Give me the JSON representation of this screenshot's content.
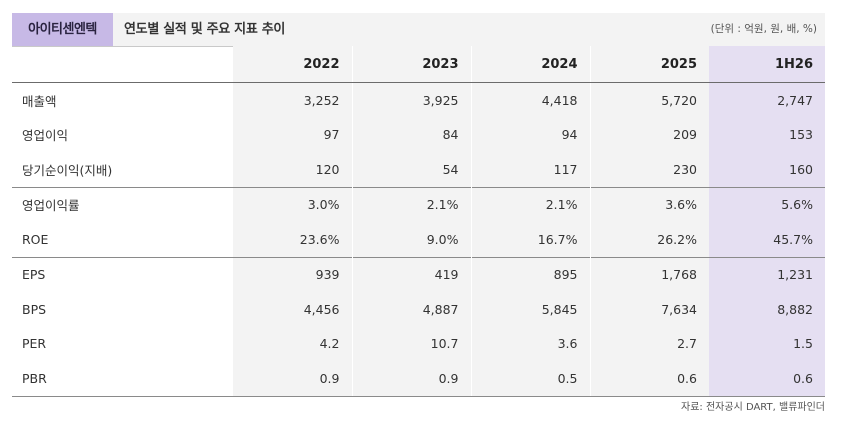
{
  "header": {
    "company": "아이티센엔텍",
    "title": "연도별 실적 및 주요 지표 추이",
    "unit": "(단위 : 억원, 원, 배, %)"
  },
  "table": {
    "columns": [
      "2022",
      "2023",
      "2024",
      "2025",
      "1H26"
    ],
    "rows": [
      {
        "label": "매출액",
        "values": [
          "3,252",
          "3,925",
          "4,418",
          "5,720",
          "2,747"
        ]
      },
      {
        "label": "영업이익",
        "values": [
          "97",
          "84",
          "94",
          "209",
          "153"
        ]
      },
      {
        "label": "당기순이익(지배)",
        "values": [
          "120",
          "54",
          "117",
          "230",
          "160"
        ]
      },
      {
        "label": "영업이익률",
        "values": [
          "3.0%",
          "2.1%",
          "2.1%",
          "3.6%",
          "5.6%"
        ]
      },
      {
        "label": "ROE",
        "values": [
          "23.6%",
          "9.0%",
          "16.7%",
          "26.2%",
          "45.7%"
        ]
      },
      {
        "label": "EPS",
        "values": [
          "939",
          "419",
          "895",
          "1,768",
          "1,231"
        ]
      },
      {
        "label": "BPS",
        "values": [
          "4,456",
          "4,887",
          "5,845",
          "7,634",
          "8,882"
        ]
      },
      {
        "label": "PER",
        "values": [
          "4.2",
          "10.7",
          "3.6",
          "2.7",
          "1.5"
        ]
      },
      {
        "label": "PBR",
        "values": [
          "0.9",
          "0.9",
          "0.5",
          "0.6",
          "0.6"
        ]
      }
    ]
  },
  "source": "자료: 전자공시 DART, 밸류파인더",
  "colors": {
    "badge": "#c7b9e6",
    "header_bg": "#f3f3f3",
    "highlight_column": "#e5dff2"
  }
}
